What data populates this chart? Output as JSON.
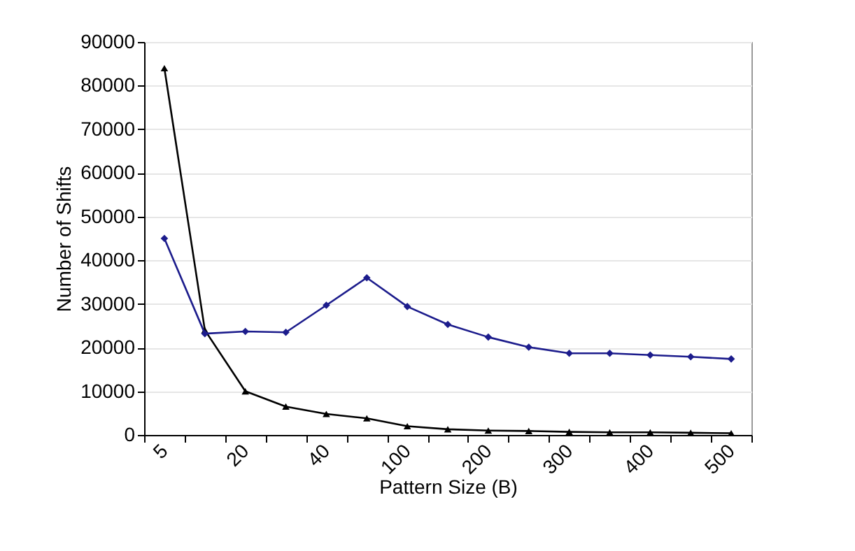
{
  "chart_data": {
    "type": "line",
    "xlabel": "Pattern Size (B)",
    "ylabel": "Number of Shifts",
    "categories": [
      "5",
      null,
      "20",
      null,
      "40",
      null,
      "100",
      null,
      "200",
      null,
      "300",
      null,
      "400",
      null,
      "500"
    ],
    "series": [
      {
        "color": "#1c1c8c",
        "marker": "diamond",
        "values": [
          45000,
          23200,
          23700,
          23500,
          29700,
          36000,
          29400,
          25300,
          22400,
          20100,
          18700,
          18700,
          18300,
          17900,
          17400
        ]
      },
      {
        "color": "#000000",
        "marker": "triangle",
        "values": [
          84000,
          24000,
          10000,
          6500,
          4800,
          3800,
          2000,
          1300,
          1000,
          900,
          700,
          600,
          600,
          500,
          400
        ]
      }
    ],
    "ylim": [
      0,
      90000
    ],
    "yticks": [
      0,
      10000,
      20000,
      30000,
      40000,
      50000,
      60000,
      70000,
      80000,
      90000
    ],
    "grid": "y",
    "legend": false
  }
}
